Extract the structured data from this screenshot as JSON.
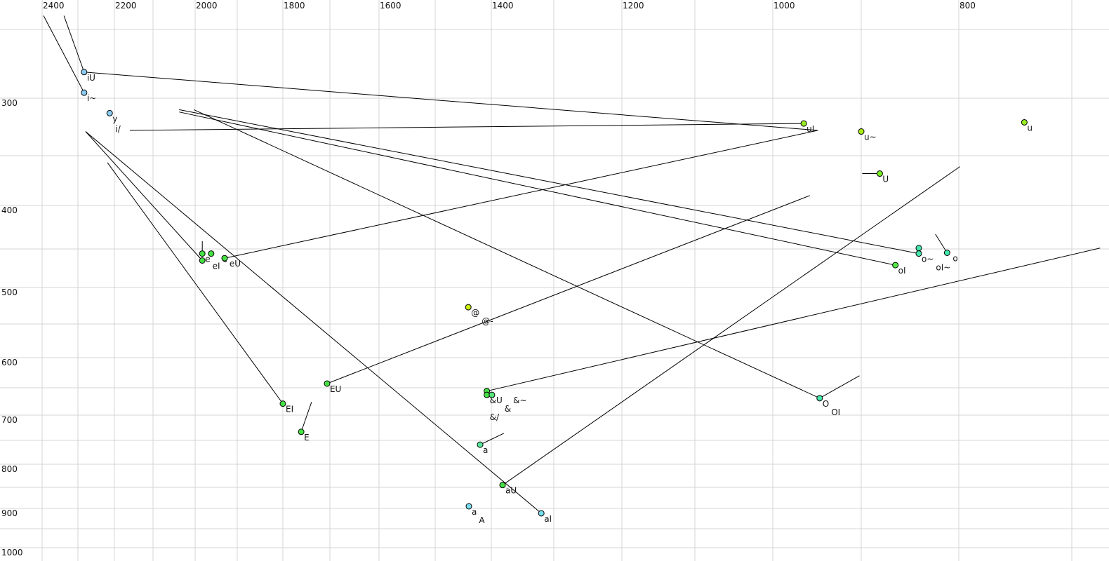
{
  "chart_data": {
    "type": "scatter",
    "title": "",
    "xlabel": "",
    "ylabel": "",
    "x_axis": {
      "reversed": true,
      "scale": "nonlinear (auditory)",
      "position": "top",
      "range": [
        2470,
        675
      ],
      "tick_labels": [
        "2400",
        "2200",
        "2000",
        "1800",
        "1600",
        "1400",
        "1200",
        "1000",
        "800"
      ],
      "grid_values": [
        2400,
        2300,
        2200,
        2100,
        2000,
        1900,
        1800,
        1700,
        1600,
        1500,
        1400,
        1300,
        1200,
        1100,
        1000,
        900,
        800,
        700
      ]
    },
    "y_axis": {
      "reversed": true,
      "scale": "nonlinear (auditory)",
      "position": "left",
      "range": [
        230,
        1000
      ],
      "tick_labels": [
        "300",
        "400",
        "500",
        "600",
        "700",
        "800",
        "900",
        "1000"
      ],
      "grid_values": [
        250,
        300,
        350,
        400,
        450,
        500,
        550,
        600,
        650,
        700,
        750,
        800,
        850,
        900,
        950,
        1000
      ]
    },
    "grid": true,
    "points": [
      {
        "labels": [
          "iU"
        ],
        "f2": 2283,
        "f1": 281,
        "color": "#8ccbf2"
      },
      {
        "labels": [
          "i~"
        ],
        "f2": 2283,
        "f1": 296,
        "color": "#8ccbf2"
      },
      {
        "labels": [
          "y"
        ],
        "f2": 2213,
        "f1": 313,
        "color": "#8ccbf2"
      },
      {
        "labels": [
          "i/"
        ],
        "f2": 2205,
        "f1": 322,
        "color": null
      },
      {
        "labels": [
          "uI"
        ],
        "f2": 965,
        "f1": 322,
        "color": "#99ee22"
      },
      {
        "labels": [
          "u~"
        ],
        "f2": 900,
        "f1": 329,
        "color": "#aaee11"
      },
      {
        "labels": [
          "u"
        ],
        "f2": 742,
        "f1": 321,
        "color": "#99ee22"
      },
      {
        "labels": [
          "U"
        ],
        "f2": 881,
        "f1": 368,
        "color": "#77ee22"
      },
      {
        "labels": [],
        "f2": 841,
        "f1": 449,
        "color": "#44e6aa"
      },
      {
        "labels": [
          "o~",
          "oI~"
        ],
        "f2": 841,
        "f1": 456,
        "color": "#44e6aa"
      },
      {
        "labels": [
          "o"
        ],
        "f2": 812,
        "f1": 455,
        "color": "#44e6aa"
      },
      {
        "labels": [
          "oI"
        ],
        "f2": 865,
        "f1": 471,
        "color": "#55e844"
      },
      {
        "labels": [
          "O",
          "OI"
        ],
        "f2": 947,
        "f1": 669,
        "color": "#44e6aa"
      },
      {
        "labels": [
          "e"
        ],
        "f2": 1983,
        "f1": 456,
        "color": "#44e044"
      },
      {
        "labels": [
          "eI"
        ],
        "f2": 1983,
        "f1": 465,
        "color": "#44e044"
      },
      {
        "labels": [
          "e"
        ],
        "f2": 1962,
        "f1": 456,
        "color": "#44e044"
      },
      {
        "labels": [
          "eU"
        ],
        "f2": 1930,
        "f1": 462,
        "color": "#44e044"
      },
      {
        "labels": [
          "EI"
        ],
        "f2": 1800,
        "f1": 679,
        "color": "#44e044"
      },
      {
        "labels": [
          "E"
        ],
        "f2": 1761,
        "f1": 733,
        "color": "#44e044"
      },
      {
        "labels": [
          "EU"
        ],
        "f2": 1706,
        "f1": 643,
        "color": "#44e044"
      },
      {
        "labels": [
          "@",
          "@-"
        ],
        "f2": 1441,
        "f1": 527,
        "color": "#ccee11"
      },
      {
        "labels": [],
        "f2": 1408,
        "f1": 656,
        "color": "#44e044"
      },
      {
        "labels": [
          "&U",
          "&",
          "&/"
        ],
        "f2": 1408,
        "f1": 663,
        "color": "#44e044"
      },
      {
        "labels": [
          "&~"
        ],
        "f2": 1399,
        "f1": 663,
        "color": "#55e67a",
        "label_color": "#777777"
      },
      {
        "labels": [
          "a"
        ],
        "f2": 1420,
        "f1": 759,
        "color": "#55e699",
        "label_color": "#666688"
      },
      {
        "labels": [
          "aU"
        ],
        "f2": 1382,
        "f1": 845,
        "color": "#44e044"
      },
      {
        "labels": [
          "a",
          "A"
        ],
        "f2": 1440,
        "f1": 895,
        "color": "#77ddee"
      },
      {
        "labels": [
          "aI"
        ],
        "f2": 1320,
        "f1": 912,
        "color": "#77ddee"
      }
    ],
    "trajectories": [
      {
        "from": [
          2339,
          240
        ],
        "to": [
          2283,
          281
        ]
      },
      {
        "from": [
          2283,
          281
        ],
        "to": [
          949,
          328
        ]
      },
      {
        "from": [
          2396,
          240
        ],
        "to": [
          2283,
          296
        ]
      },
      {
        "from": [
          2160,
          328
        ],
        "to": [
          965,
          322
        ]
      },
      {
        "from": [
          899,
          368
        ],
        "to": [
          881,
          368
        ]
      },
      {
        "from": [
          2038,
          310
        ],
        "to": [
          841,
          456
        ]
      },
      {
        "from": [
          2038,
          312
        ],
        "to": [
          865,
          471
        ]
      },
      {
        "from": [
          2003,
          310
        ],
        "to": [
          947,
          669
        ]
      },
      {
        "from": [
          947,
          669
        ],
        "to": [
          902,
          630
        ]
      },
      {
        "from": [
          824,
          433
        ],
        "to": [
          812,
          455
        ]
      },
      {
        "from": [
          1983,
          441
        ],
        "to": [
          1983,
          456
        ]
      },
      {
        "from": [
          2279,
          329
        ],
        "to": [
          1983,
          465
        ]
      },
      {
        "from": [
          2279,
          329
        ],
        "to": [
          1320,
          912
        ]
      },
      {
        "from": [
          2219,
          357
        ],
        "to": [
          1800,
          679
        ]
      },
      {
        "from": [
          1739,
          676
        ],
        "to": [
          1761,
          733
        ]
      },
      {
        "from": [
          1930,
          462
        ],
        "to": [
          949,
          328
        ]
      },
      {
        "from": [
          1706,
          643
        ],
        "to": [
          958,
          390
        ]
      },
      {
        "from": [
          1408,
          656
        ],
        "to": [
          675,
          449
        ]
      },
      {
        "from": [
          1420,
          759
        ],
        "to": [
          1380,
          736
        ],
        "color": "#666666"
      },
      {
        "from": [
          1382,
          845
        ],
        "to": [
          799,
          361
        ]
      }
    ]
  }
}
